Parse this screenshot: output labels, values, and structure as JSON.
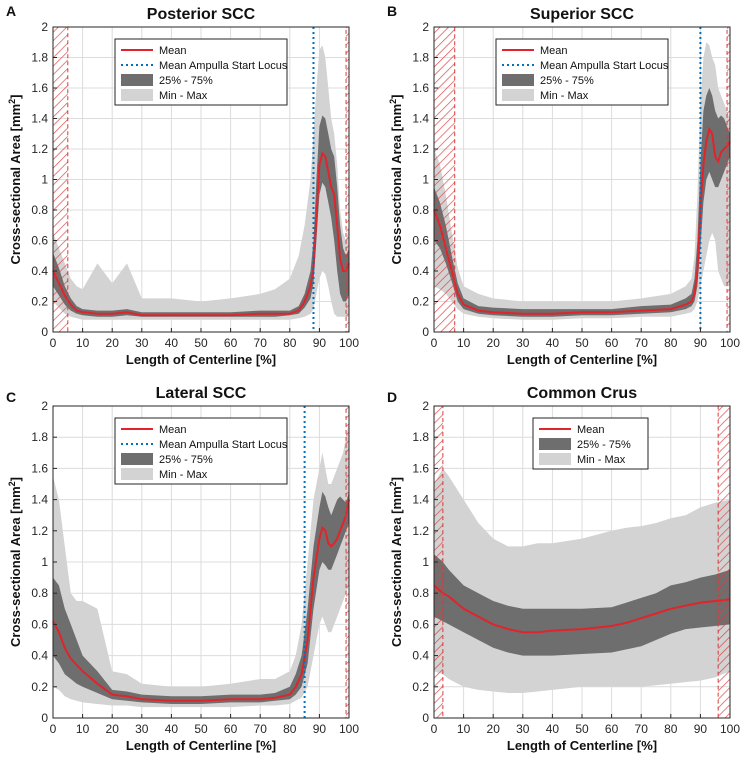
{
  "colors": {
    "mean": "#e0242b",
    "ampulla": "#0072bd",
    "iqr": "#6e6e6e",
    "minmax": "#d3d3d3",
    "hatch": "#d83a3a",
    "grid": "#dcdcdc"
  },
  "chart_data": [
    {
      "type": "area",
      "panel_label": "A",
      "title": "Posterior SCC",
      "xlabel": "Length of Centerline [%]",
      "ylabel_main": "Cross-sectional Area [mm",
      "ylabel_sup": "2",
      "ylabel_end": "]",
      "xlim": [
        0,
        100
      ],
      "ylim": [
        0,
        2
      ],
      "xticks": [
        "0",
        "10",
        "20",
        "30",
        "40",
        "50",
        "60",
        "70",
        "80",
        "90",
        "100"
      ],
      "yticks": [
        "0",
        "0.2",
        "0.4",
        "0.6",
        "0.8",
        "1",
        "1.2",
        "1.4",
        "1.6",
        "1.8",
        "2"
      ],
      "grid": true,
      "legend_position": "top-center",
      "legend": [
        "Mean",
        "Mean Ampulla Start Locus",
        "25% - 75%",
        "Min - Max"
      ],
      "ampulla_start": 88,
      "hatch_ranges": [
        [
          0,
          5
        ],
        [
          99,
          100
        ]
      ],
      "x": [
        0,
        2,
        4,
        6,
        8,
        10,
        15,
        20,
        25,
        30,
        40,
        50,
        60,
        70,
        75,
        80,
        83,
        85,
        87,
        88,
        89,
        90,
        91,
        92,
        93,
        94,
        95,
        96,
        97,
        98,
        99,
        100
      ],
      "mean": [
        0.4,
        0.32,
        0.24,
        0.18,
        0.14,
        0.13,
        0.12,
        0.12,
        0.13,
        0.11,
        0.11,
        0.11,
        0.11,
        0.12,
        0.12,
        0.12,
        0.14,
        0.2,
        0.3,
        0.42,
        0.75,
        1.1,
        1.17,
        1.15,
        1.05,
        0.95,
        0.9,
        0.7,
        0.48,
        0.4,
        0.4,
        0.45
      ],
      "q25": [
        0.3,
        0.24,
        0.18,
        0.14,
        0.12,
        0.11,
        0.1,
        0.1,
        0.11,
        0.1,
        0.1,
        0.1,
        0.1,
        0.1,
        0.1,
        0.11,
        0.12,
        0.16,
        0.22,
        0.32,
        0.6,
        0.9,
        0.98,
        0.95,
        0.85,
        0.75,
        0.6,
        0.4,
        0.25,
        0.2,
        0.2,
        0.25
      ],
      "q75": [
        0.52,
        0.42,
        0.3,
        0.22,
        0.17,
        0.15,
        0.14,
        0.14,
        0.15,
        0.13,
        0.13,
        0.13,
        0.13,
        0.14,
        0.14,
        0.14,
        0.17,
        0.25,
        0.4,
        0.6,
        1.0,
        1.35,
        1.42,
        1.4,
        1.3,
        1.2,
        1.15,
        0.95,
        0.7,
        0.55,
        0.5,
        0.55
      ],
      "min": [
        0.2,
        0.16,
        0.12,
        0.1,
        0.09,
        0.08,
        0.08,
        0.08,
        0.08,
        0.08,
        0.08,
        0.08,
        0.08,
        0.08,
        0.08,
        0.08,
        0.09,
        0.1,
        0.12,
        0.15,
        0.25,
        0.35,
        0.4,
        0.38,
        0.3,
        0.2,
        0.12,
        0.1,
        0.1,
        0.1,
        0.1,
        0.1
      ],
      "max": [
        0.65,
        0.55,
        0.45,
        0.35,
        0.3,
        0.28,
        0.45,
        0.32,
        0.45,
        0.22,
        0.22,
        0.2,
        0.22,
        0.25,
        0.28,
        0.35,
        0.5,
        0.7,
        1.0,
        1.3,
        1.6,
        1.85,
        1.88,
        1.8,
        1.6,
        1.4,
        1.3,
        1.1,
        0.8,
        0.65,
        0.6,
        0.7
      ]
    },
    {
      "type": "area",
      "panel_label": "B",
      "title": "Superior SCC",
      "xlabel": "Length of Centerline [%]",
      "ylabel_main": "Cross-sectional Area [mm",
      "ylabel_sup": "2",
      "ylabel_end": "]",
      "xlim": [
        0,
        100
      ],
      "ylim": [
        0,
        2
      ],
      "xticks": [
        "0",
        "10",
        "20",
        "30",
        "40",
        "50",
        "60",
        "70",
        "80",
        "90",
        "100"
      ],
      "yticks": [
        "0",
        "0.2",
        "0.4",
        "0.6",
        "0.8",
        "1",
        "1.2",
        "1.4",
        "1.6",
        "1.8",
        "2"
      ],
      "grid": true,
      "legend_position": "top-center",
      "legend": [
        "Mean",
        "Mean Ampulla Start Locus",
        "25% - 75%",
        "Min - Max"
      ],
      "ampulla_start": 90,
      "hatch_ranges": [
        [
          0,
          7
        ],
        [
          99,
          100
        ]
      ],
      "x": [
        0,
        2,
        4,
        6,
        8,
        10,
        15,
        20,
        30,
        40,
        50,
        60,
        70,
        80,
        85,
        87,
        88,
        89,
        90,
        91,
        92,
        93,
        94,
        95,
        96,
        97,
        98,
        99,
        100
      ],
      "mean": [
        0.8,
        0.7,
        0.55,
        0.4,
        0.25,
        0.18,
        0.14,
        0.13,
        0.12,
        0.12,
        0.13,
        0.13,
        0.14,
        0.15,
        0.18,
        0.2,
        0.25,
        0.4,
        0.8,
        1.1,
        1.25,
        1.33,
        1.3,
        1.15,
        1.12,
        1.18,
        1.2,
        1.22,
        1.25
      ],
      "q25": [
        0.6,
        0.55,
        0.45,
        0.33,
        0.2,
        0.15,
        0.12,
        0.11,
        0.1,
        0.1,
        0.11,
        0.11,
        0.12,
        0.13,
        0.15,
        0.17,
        0.2,
        0.3,
        0.55,
        0.85,
        1.0,
        1.05,
        1.0,
        0.95,
        0.95,
        1.0,
        1.05,
        1.1,
        1.15
      ],
      "q75": [
        0.95,
        0.85,
        0.7,
        0.5,
        0.32,
        0.22,
        0.17,
        0.16,
        0.15,
        0.15,
        0.15,
        0.15,
        0.17,
        0.18,
        0.22,
        0.25,
        0.35,
        0.6,
        1.1,
        1.45,
        1.55,
        1.6,
        1.55,
        1.45,
        1.4,
        1.42,
        1.4,
        1.35,
        1.3
      ],
      "min": [
        0.3,
        0.28,
        0.25,
        0.2,
        0.15,
        0.12,
        0.1,
        0.09,
        0.08,
        0.08,
        0.09,
        0.09,
        0.1,
        0.1,
        0.12,
        0.13,
        0.15,
        0.2,
        0.3,
        0.4,
        0.5,
        0.6,
        0.65,
        0.6,
        0.4,
        0.35,
        0.3,
        0.3,
        0.3
      ],
      "max": [
        1.2,
        1.1,
        0.9,
        0.65,
        0.42,
        0.3,
        0.25,
        0.22,
        0.2,
        0.2,
        0.2,
        0.2,
        0.22,
        0.25,
        0.3,
        0.35,
        0.5,
        0.9,
        1.5,
        1.8,
        1.9,
        1.88,
        1.8,
        1.75,
        1.6,
        1.55,
        1.5,
        1.45,
        1.4
      ]
    },
    {
      "type": "area",
      "panel_label": "C",
      "title": "Lateral SCC",
      "xlabel": "Length of Centerline [%]",
      "ylabel_main": "Cross-sectional Area [mm",
      "ylabel_sup": "2",
      "ylabel_end": "]",
      "xlim": [
        0,
        100
      ],
      "ylim": [
        0,
        2
      ],
      "xticks": [
        "0",
        "10",
        "20",
        "30",
        "40",
        "50",
        "60",
        "70",
        "80",
        "90",
        "100"
      ],
      "yticks": [
        "0",
        "0.2",
        "0.4",
        "0.6",
        "0.8",
        "1",
        "1.2",
        "1.4",
        "1.6",
        "1.8",
        "2"
      ],
      "grid": true,
      "legend_position": "top-center",
      "legend": [
        "Mean",
        "Mean Ampulla Start Locus",
        "25% - 75%",
        "Min - Max"
      ],
      "ampulla_start": 85,
      "hatch_ranges": [
        [
          99,
          100
        ]
      ],
      "x": [
        0,
        2,
        4,
        6,
        8,
        10,
        15,
        20,
        25,
        30,
        40,
        50,
        60,
        70,
        75,
        80,
        82,
        84,
        86,
        88,
        90,
        91,
        92,
        93,
        94,
        95,
        96,
        97,
        98,
        99,
        100
      ],
      "mean": [
        0.62,
        0.55,
        0.45,
        0.38,
        0.34,
        0.3,
        0.22,
        0.15,
        0.14,
        0.12,
        0.11,
        0.11,
        0.12,
        0.12,
        0.13,
        0.15,
        0.2,
        0.28,
        0.5,
        0.9,
        1.15,
        1.22,
        1.2,
        1.12,
        1.1,
        1.12,
        1.15,
        1.2,
        1.25,
        1.3,
        1.4
      ],
      "q25": [
        0.4,
        0.35,
        0.28,
        0.25,
        0.22,
        0.2,
        0.16,
        0.12,
        0.11,
        0.1,
        0.09,
        0.09,
        0.1,
        0.1,
        0.11,
        0.12,
        0.15,
        0.2,
        0.35,
        0.7,
        0.95,
        1.0,
        0.98,
        0.95,
        0.95,
        1.0,
        1.05,
        1.1,
        1.15,
        1.2,
        1.25
      ],
      "q75": [
        0.9,
        0.85,
        0.7,
        0.6,
        0.5,
        0.4,
        0.3,
        0.18,
        0.17,
        0.15,
        0.14,
        0.14,
        0.15,
        0.15,
        0.16,
        0.2,
        0.28,
        0.4,
        0.7,
        1.1,
        1.35,
        1.45,
        1.42,
        1.35,
        1.3,
        1.35,
        1.4,
        1.42,
        1.4,
        1.38,
        1.45
      ],
      "min": [
        0.2,
        0.18,
        0.14,
        0.12,
        0.11,
        0.1,
        0.09,
        0.08,
        0.08,
        0.07,
        0.07,
        0.07,
        0.07,
        0.08,
        0.08,
        0.09,
        0.11,
        0.13,
        0.2,
        0.4,
        0.6,
        0.65,
        0.6,
        0.55,
        0.55,
        0.6,
        0.65,
        0.7,
        0.75,
        0.8,
        0.85
      ],
      "max": [
        1.55,
        1.4,
        1.1,
        0.8,
        0.75,
        0.75,
        0.7,
        0.3,
        0.28,
        0.22,
        0.2,
        0.2,
        0.22,
        0.25,
        0.25,
        0.3,
        0.4,
        0.6,
        1.0,
        1.4,
        1.6,
        1.7,
        1.6,
        1.5,
        1.5,
        1.55,
        1.6,
        1.65,
        1.7,
        1.8,
        1.9
      ]
    },
    {
      "type": "area",
      "panel_label": "D",
      "title": "Common Crus",
      "xlabel": "Length of Centerline [%]",
      "ylabel_main": "Cross-sectional Area [mm",
      "ylabel_sup": "2",
      "ylabel_end": "]",
      "xlim": [
        0,
        100
      ],
      "ylim": [
        0,
        2
      ],
      "xticks": [
        "0",
        "10",
        "20",
        "30",
        "40",
        "50",
        "60",
        "70",
        "80",
        "90",
        "100"
      ],
      "yticks": [
        "0",
        "0.2",
        "0.4",
        "0.6",
        "0.8",
        "1",
        "1.2",
        "1.4",
        "1.6",
        "1.8",
        "2"
      ],
      "grid": true,
      "legend_position": "top-center",
      "legend": [
        "Mean",
        "25% - 75%",
        "Min - Max"
      ],
      "ampulla_start": null,
      "hatch_ranges": [
        [
          0,
          3
        ],
        [
          96,
          100
        ]
      ],
      "x": [
        0,
        3,
        5,
        10,
        15,
        20,
        25,
        30,
        35,
        40,
        50,
        60,
        65,
        70,
        75,
        80,
        85,
        90,
        95,
        100
      ],
      "mean": [
        0.85,
        0.8,
        0.78,
        0.7,
        0.65,
        0.6,
        0.57,
        0.55,
        0.55,
        0.56,
        0.57,
        0.59,
        0.61,
        0.64,
        0.67,
        0.7,
        0.72,
        0.74,
        0.75,
        0.76
      ],
      "q25": [
        0.65,
        0.62,
        0.6,
        0.55,
        0.5,
        0.45,
        0.42,
        0.4,
        0.4,
        0.4,
        0.41,
        0.42,
        0.44,
        0.46,
        0.5,
        0.54,
        0.57,
        0.58,
        0.59,
        0.6
      ],
      "q75": [
        1.05,
        1.0,
        0.95,
        0.85,
        0.8,
        0.75,
        0.72,
        0.7,
        0.7,
        0.7,
        0.7,
        0.71,
        0.74,
        0.77,
        0.8,
        0.85,
        0.87,
        0.9,
        0.92,
        0.95
      ],
      "min": [
        0.3,
        0.28,
        0.25,
        0.2,
        0.18,
        0.17,
        0.16,
        0.16,
        0.17,
        0.18,
        0.2,
        0.2,
        0.2,
        0.2,
        0.21,
        0.22,
        0.23,
        0.24,
        0.26,
        0.3
      ],
      "max": [
        1.5,
        1.6,
        1.55,
        1.4,
        1.25,
        1.15,
        1.1,
        1.1,
        1.12,
        1.12,
        1.15,
        1.2,
        1.22,
        1.23,
        1.25,
        1.28,
        1.3,
        1.35,
        1.38,
        1.4
      ]
    }
  ]
}
